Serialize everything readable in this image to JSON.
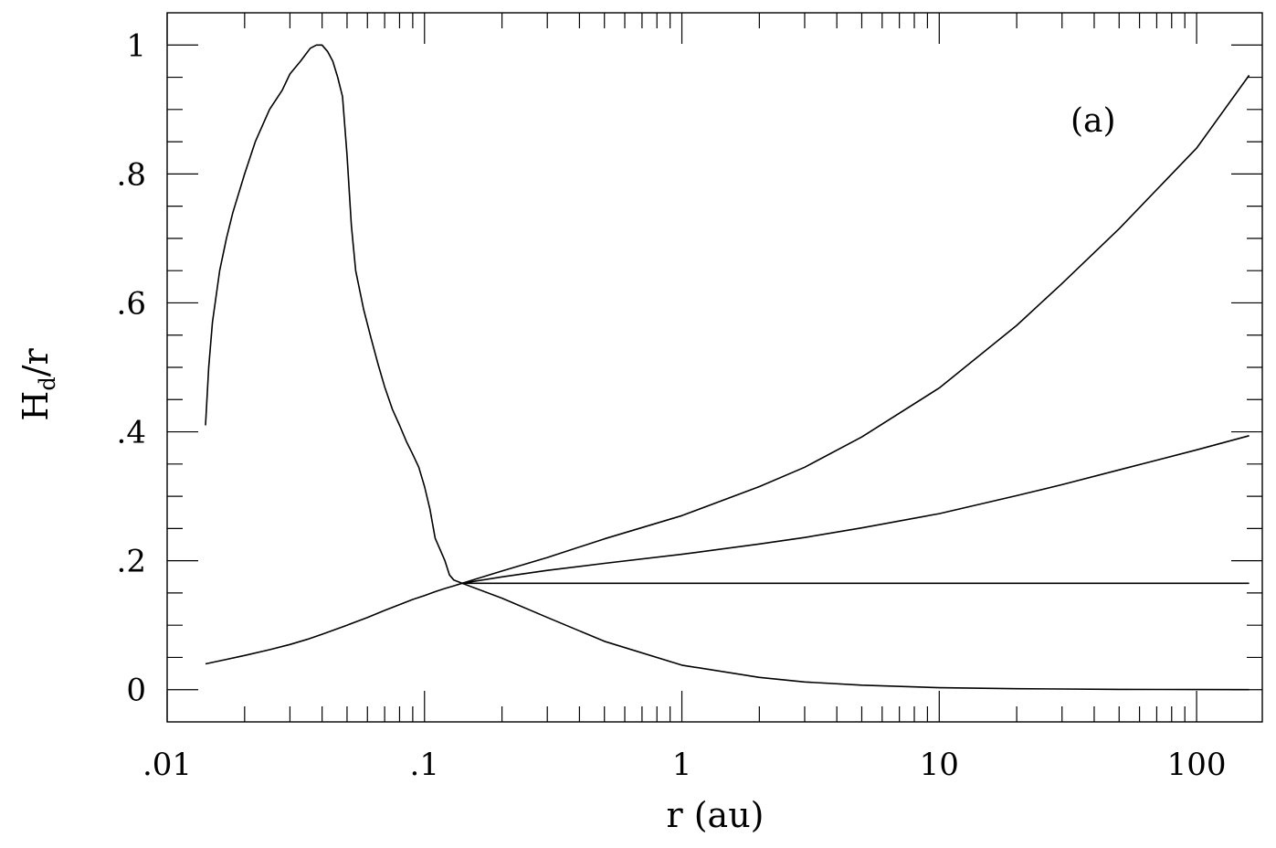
{
  "chart_data": {
    "type": "line",
    "panel_label": "(a)",
    "xlabel": "r (au)",
    "ylabel_main": "H",
    "ylabel_sub": "d",
    "ylabel_tail": "/r",
    "xscale": "log",
    "xlim": [
      0.01,
      180
    ],
    "ylim": [
      -0.05,
      1.05
    ],
    "x_ticks": [
      {
        "value": 0.01,
        "label": ".01"
      },
      {
        "value": 0.1,
        "label": ".1"
      },
      {
        "value": 1,
        "label": "1"
      },
      {
        "value": 10,
        "label": "10"
      },
      {
        "value": 100,
        "label": "100"
      }
    ],
    "y_ticks": [
      {
        "value": 0,
        "label": "0"
      },
      {
        "value": 0.2,
        "label": ".2"
      },
      {
        "value": 0.4,
        "label": ".4"
      },
      {
        "value": 0.6,
        "label": ".6"
      },
      {
        "value": 0.8,
        "label": ".8"
      },
      {
        "value": 1.0,
        "label": "1"
      }
    ],
    "y_minor_step": 0.05,
    "grid": false,
    "series": [
      {
        "x": [
          0.0141,
          0.0145,
          0.015,
          0.016,
          0.017,
          0.018,
          0.02,
          0.022,
          0.025,
          0.028,
          0.03,
          0.033,
          0.036,
          0.038,
          0.04,
          0.042,
          0.044,
          0.046,
          0.048,
          0.05,
          0.052,
          0.054,
          0.058,
          0.062,
          0.066,
          0.07,
          0.075,
          0.08,
          0.085,
          0.09,
          0.095,
          0.1,
          0.105,
          0.11,
          0.12,
          0.125,
          0.13,
          0.14
        ],
        "y": [
          0.41,
          0.5,
          0.57,
          0.65,
          0.7,
          0.74,
          0.8,
          0.85,
          0.9,
          0.93,
          0.955,
          0.975,
          0.995,
          1.0,
          1.0,
          0.99,
          0.975,
          0.95,
          0.92,
          0.83,
          0.72,
          0.65,
          0.59,
          0.545,
          0.505,
          0.47,
          0.435,
          0.41,
          0.385,
          0.365,
          0.345,
          0.315,
          0.28,
          0.235,
          0.2,
          0.178,
          0.17,
          0.165
        ]
      },
      {
        "x": [
          0.0141,
          0.017,
          0.02,
          0.025,
          0.03,
          0.035,
          0.04,
          0.05,
          0.06,
          0.07,
          0.08,
          0.09,
          0.1,
          0.11,
          0.12,
          0.13,
          0.14
        ],
        "y": [
          0.04,
          0.047,
          0.053,
          0.062,
          0.07,
          0.078,
          0.086,
          0.1,
          0.112,
          0.123,
          0.132,
          0.14,
          0.146,
          0.152,
          0.157,
          0.161,
          0.165
        ]
      },
      {
        "x": [
          0.14,
          0.2,
          0.3,
          0.5,
          1,
          2,
          3,
          5,
          10,
          20,
          30,
          50,
          100,
          160
        ],
        "y": [
          0.165,
          0.165,
          0.165,
          0.165,
          0.165,
          0.165,
          0.165,
          0.165,
          0.165,
          0.165,
          0.165,
          0.165,
          0.165,
          0.165
        ]
      },
      {
        "x": [
          0.14,
          0.2,
          0.3,
          0.5,
          1,
          2,
          3,
          5,
          10,
          20,
          30,
          50,
          100,
          160
        ],
        "y": [
          0.165,
          0.142,
          0.112,
          0.075,
          0.038,
          0.019,
          0.012,
          0.007,
          0.003,
          0.0015,
          0.001,
          0.0005,
          0.0002,
          0.0001
        ]
      },
      {
        "x": [
          0.14,
          0.2,
          0.3,
          0.5,
          1,
          2,
          3,
          5,
          10,
          20,
          30,
          50,
          100,
          160
        ],
        "y": [
          0.165,
          0.175,
          0.185,
          0.196,
          0.21,
          0.226,
          0.236,
          0.251,
          0.273,
          0.301,
          0.318,
          0.341,
          0.372,
          0.394
        ]
      },
      {
        "x": [
          0.14,
          0.2,
          0.3,
          0.5,
          1,
          2,
          3,
          5,
          10,
          20,
          30,
          50,
          100,
          160
        ],
        "y": [
          0.165,
          0.184,
          0.205,
          0.234,
          0.27,
          0.315,
          0.345,
          0.392,
          0.468,
          0.565,
          0.63,
          0.715,
          0.84,
          0.953
        ]
      }
    ]
  }
}
